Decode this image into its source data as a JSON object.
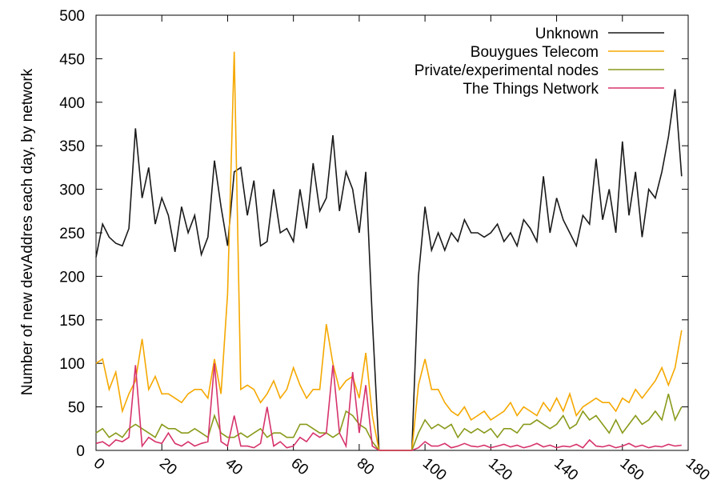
{
  "chart_data": {
    "type": "line",
    "y_label": "Number of new devAddres each day, by network",
    "x": [
      0,
      2,
      4,
      6,
      8,
      10,
      12,
      14,
      16,
      18,
      20,
      22,
      24,
      26,
      28,
      30,
      32,
      34,
      36,
      38,
      40,
      42,
      44,
      46,
      48,
      50,
      52,
      54,
      56,
      58,
      60,
      62,
      64,
      66,
      68,
      70,
      72,
      74,
      76,
      78,
      80,
      82,
      84,
      86,
      88,
      90,
      92,
      94,
      96,
      98,
      100,
      102,
      104,
      106,
      108,
      110,
      112,
      114,
      116,
      118,
      120,
      122,
      124,
      126,
      128,
      130,
      132,
      134,
      136,
      138,
      140,
      142,
      144,
      146,
      148,
      150,
      152,
      154,
      156,
      158,
      160,
      162,
      164,
      166,
      168,
      170,
      172,
      174,
      176,
      178
    ],
    "series": [
      {
        "name": "Unknown",
        "color": "#1a1a1a",
        "values": [
          222,
          260,
          245,
          238,
          235,
          255,
          370,
          290,
          325,
          260,
          290,
          270,
          228,
          280,
          250,
          270,
          225,
          245,
          333,
          280,
          235,
          320,
          325,
          270,
          310,
          235,
          240,
          300,
          250,
          255,
          240,
          300,
          255,
          330,
          275,
          290,
          362,
          275,
          320,
          300,
          250,
          320,
          150,
          0,
          0,
          0,
          0,
          0,
          0,
          200,
          280,
          230,
          250,
          230,
          250,
          240,
          265,
          250,
          250,
          245,
          250,
          260,
          240,
          250,
          235,
          265,
          255,
          240,
          315,
          250,
          290,
          265,
          250,
          235,
          270,
          260,
          335,
          265,
          300,
          250,
          355,
          270,
          320,
          245,
          300,
          290,
          320,
          360,
          415,
          315
        ]
      },
      {
        "name": "Bouygues Telecom",
        "color": "#f5a800",
        "values": [
          100,
          105,
          70,
          90,
          45,
          65,
          80,
          128,
          70,
          85,
          65,
          65,
          60,
          55,
          65,
          70,
          70,
          60,
          105,
          65,
          180,
          458,
          70,
          75,
          70,
          55,
          65,
          80,
          60,
          70,
          95,
          75,
          60,
          70,
          70,
          145,
          100,
          70,
          80,
          85,
          60,
          112,
          40,
          0,
          0,
          0,
          0,
          0,
          0,
          75,
          105,
          70,
          70,
          55,
          45,
          40,
          50,
          35,
          40,
          45,
          35,
          40,
          45,
          55,
          40,
          50,
          45,
          40,
          55,
          45,
          60,
          45,
          65,
          40,
          50,
          55,
          60,
          55,
          55,
          45,
          60,
          55,
          70,
          60,
          70,
          80,
          95,
          75,
          95,
          138
        ]
      },
      {
        "name": "Private/experimental nodes",
        "color": "#8a9a1b",
        "values": [
          20,
          25,
          15,
          20,
          15,
          25,
          30,
          25,
          20,
          15,
          30,
          25,
          25,
          20,
          20,
          25,
          20,
          15,
          40,
          20,
          15,
          15,
          20,
          15,
          20,
          25,
          15,
          20,
          20,
          15,
          15,
          30,
          30,
          25,
          20,
          20,
          15,
          20,
          45,
          40,
          30,
          25,
          10,
          0,
          0,
          0,
          0,
          0,
          0,
          20,
          35,
          25,
          30,
          25,
          30,
          15,
          25,
          20,
          25,
          20,
          25,
          15,
          25,
          25,
          20,
          30,
          30,
          35,
          30,
          25,
          30,
          40,
          25,
          30,
          45,
          35,
          40,
          30,
          20,
          35,
          20,
          30,
          40,
          30,
          35,
          45,
          35,
          65,
          35,
          50
        ]
      },
      {
        "name": "The Things Network",
        "color": "#d6336c",
        "values": [
          8,
          10,
          5,
          12,
          10,
          15,
          98,
          5,
          15,
          10,
          8,
          20,
          8,
          5,
          10,
          5,
          8,
          10,
          100,
          10,
          5,
          40,
          5,
          5,
          3,
          8,
          50,
          5,
          10,
          3,
          5,
          15,
          10,
          20,
          15,
          20,
          98,
          20,
          5,
          90,
          20,
          75,
          5,
          0,
          0,
          0,
          0,
          0,
          0,
          3,
          10,
          5,
          5,
          8,
          3,
          5,
          8,
          5,
          4,
          6,
          3,
          5,
          7,
          4,
          6,
          3,
          5,
          8,
          4,
          6,
          3,
          5,
          4,
          7,
          3,
          12,
          5,
          4,
          6,
          3,
          5,
          8,
          4,
          6,
          3,
          5,
          4,
          7,
          5,
          6
        ]
      }
    ],
    "xlim": [
      0,
      180
    ],
    "xticks": [
      0,
      20,
      40,
      60,
      80,
      100,
      120,
      140,
      160,
      180
    ],
    "ylim": [
      0,
      500
    ],
    "yticks": [
      0,
      50,
      100,
      150,
      200,
      250,
      300,
      350,
      400,
      450,
      500
    ],
    "legend": "top-right"
  }
}
